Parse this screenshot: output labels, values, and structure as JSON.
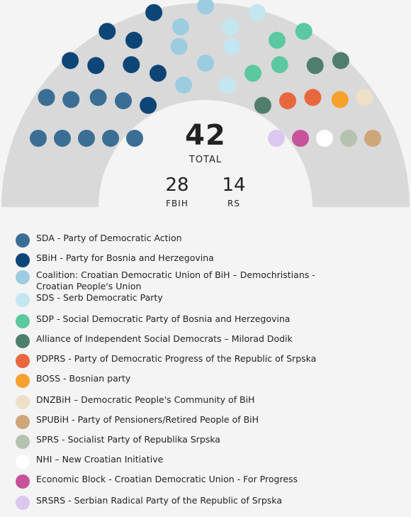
{
  "chart_data": {
    "type": "parliament",
    "total": 42,
    "total_label": "TOTAL",
    "subtotals": [
      {
        "value": 28,
        "label": "FBIH"
      },
      {
        "value": 14,
        "label": "RS"
      }
    ],
    "parties": [
      {
        "name": "SDA - Party of Democratic Action",
        "seats": 9,
        "color": "#3a6e95"
      },
      {
        "name": "SBiH - Party for Bosnia and Herzegovina",
        "seats": 8,
        "color": "#0d4577"
      },
      {
        "name": "Coalition: Croatian Democratic Union of BiH – Demochristians - Croatian People's Union",
        "seats": 5,
        "color": "#9ccce0"
      },
      {
        "name": "SDS - Serb Democratic Party",
        "seats": 4,
        "color": "#c3e6f0"
      },
      {
        "name": "SDP - Social Democratic Party of Bosnia and Herzegovina",
        "seats": 4,
        "color": "#5cc8a0"
      },
      {
        "name": "Alliance of Independent Social Democrats – Milorad Dodik",
        "seats": 3,
        "color": "#4f7f6c"
      },
      {
        "name": "PDPRS - Party of Democratic Progress of the Republic of Srpska",
        "seats": 2,
        "color": "#e8673f"
      },
      {
        "name": "BOSS - Bosnian party",
        "seats": 1,
        "color": "#f7a12d"
      },
      {
        "name": "DNZBiH – Democratic People's  Community of BiH",
        "seats": 1,
        "color": "#eee0c8"
      },
      {
        "name": "SPUBiH - Party of Pensioners/Retired People of BiH",
        "seats": 1,
        "color": "#cfa57a"
      },
      {
        "name": "SPRS - Socialist Party of Republika Srpska",
        "seats": 1,
        "color": "#b4c3b0"
      },
      {
        "name": "NHI – New Croatian Initiative",
        "seats": 1,
        "color": "#ffffff"
      },
      {
        "name": "Economic Block - Croatian Democratic Union - For Progress",
        "seats": 1,
        "color": "#c7539c"
      },
      {
        "name": "SRSRS - Serbian Radical Party of the Republic of Srpska",
        "seats": 1,
        "color": "#dcc8ef"
      }
    ]
  }
}
